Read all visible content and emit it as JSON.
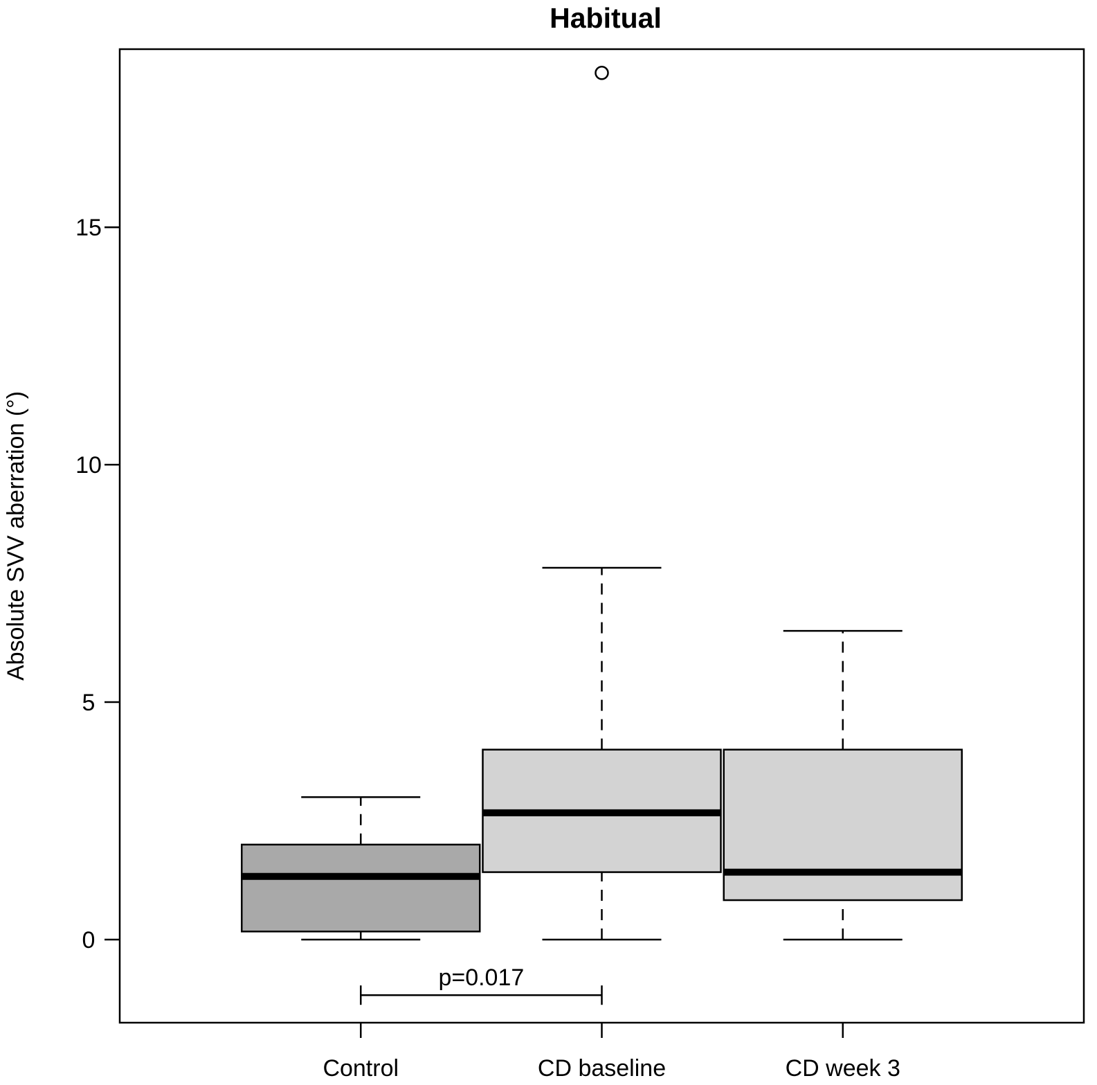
{
  "chart_data": {
    "type": "boxplot",
    "title": "Habitual",
    "xlabel": "",
    "ylabel": "Absolute SVV aberration (°)",
    "ylim": [
      -1.75,
      18.75
    ],
    "yticks": [
      0,
      5,
      10,
      15
    ],
    "categories": [
      "Control",
      "CD baseline",
      "CD week 3"
    ],
    "boxes": [
      {
        "name": "Control",
        "whisker_low": 0,
        "q1": 0.17,
        "median": 1.33,
        "q3": 2.0,
        "whisker_high": 3.0,
        "outliers": [],
        "fill": "#a9a9a9"
      },
      {
        "name": "CD baseline",
        "whisker_low": 0,
        "q1": 1.42,
        "median": 2.67,
        "q3": 4.0,
        "whisker_high": 7.83,
        "outliers": [
          18.25
        ],
        "fill": "#d3d3d3"
      },
      {
        "name": "CD week 3",
        "whisker_low": 0,
        "q1": 0.83,
        "median": 1.42,
        "q3": 4.0,
        "whisker_high": 6.5,
        "outliers": [],
        "fill": "#d3d3d3"
      }
    ],
    "annotation": {
      "text": "p=0.017",
      "from": "Control",
      "to": "CD baseline",
      "y": -1.17
    }
  }
}
